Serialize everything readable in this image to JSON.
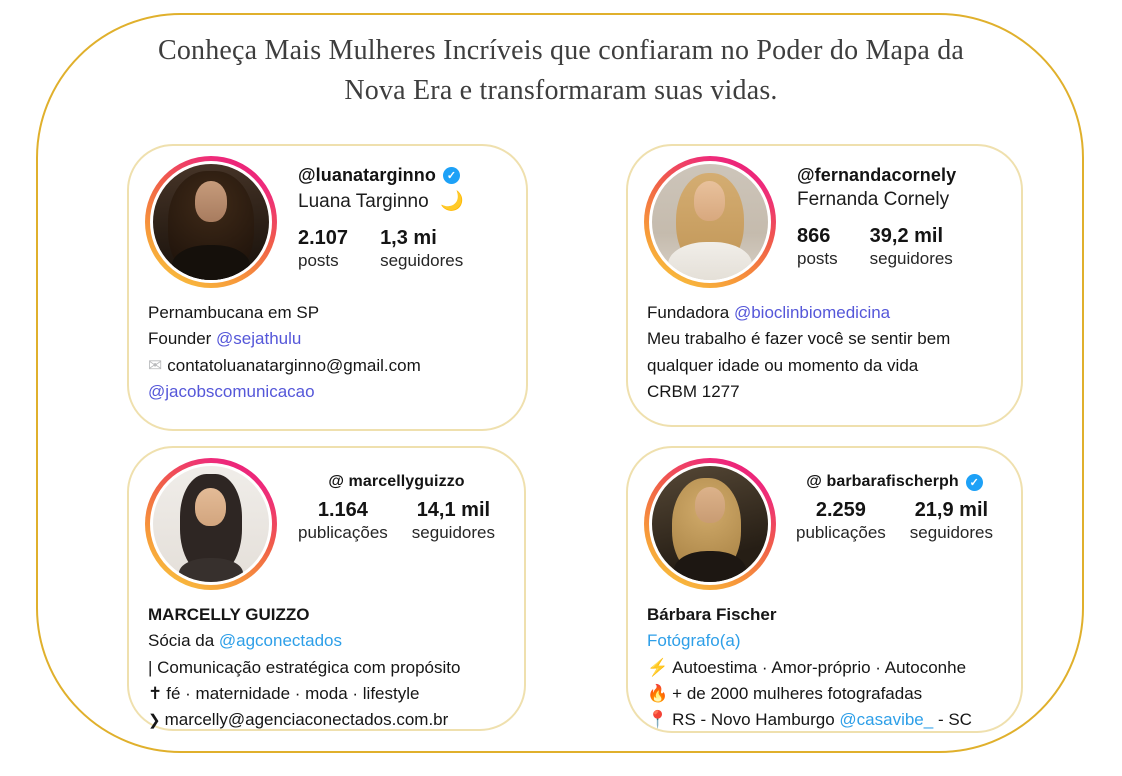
{
  "title": {
    "line1": "Conheça Mais Mulheres Incríveis que confiaram no Poder do Mapa da",
    "line2": "Nova Era e transformaram suas vidas."
  },
  "colors": {
    "frame_gold": "#e0b02c",
    "card_border": "#efe0ae",
    "mention_purple": "#5557d9",
    "mention_blue": "#2e9fe8",
    "verified_blue": "#1da1f7",
    "story_ring_gradient": [
      "#f8cf3e",
      "#f79a3a",
      "#ee2a7b",
      "#e4156e"
    ]
  },
  "icons": {
    "verified_check": "✓",
    "moon": "🌙",
    "envelope": "✉",
    "lightning": "⚡",
    "fire": "🔥",
    "pin": "📍",
    "cross": "✝",
    "chevron": "❯"
  },
  "cards": [
    {
      "handle": "@luanatarginno",
      "verified": true,
      "display_name": "Luana Targinno",
      "stats": [
        {
          "value": "2.107",
          "label": "posts"
        },
        {
          "value": "1,3 mi",
          "label": "seguidores"
        }
      ],
      "bio": {
        "line1": "Pernambucana em SP",
        "line2_prefix": "Founder ",
        "line2_mention": "@sejathulu",
        "line3_text": "contatoluanatarginno@gmail.com",
        "line4_mention": "@jacobscomunicacao"
      }
    },
    {
      "handle": "@fernandacornely",
      "verified": false,
      "display_name": "Fernanda Cornely",
      "stats": [
        {
          "value": "866",
          "label": "posts"
        },
        {
          "value": "39,2 mil",
          "label": "seguidores"
        }
      ],
      "bio": {
        "line1_prefix": "Fundadora ",
        "line1_mention": "@bioclinbiomedicina",
        "line2": "Meu trabalho é fazer você se sentir bem",
        "line3": "qualquer idade ou momento da vida",
        "line4": "CRBM 1277"
      }
    },
    {
      "handle": "@ marcellyguizzo",
      "verified": false,
      "stats": [
        {
          "value": "1.164",
          "label": "publicações"
        },
        {
          "value": "14,1 mil",
          "label": "seguidores"
        }
      ],
      "bio": {
        "name": "MARCELLY GUIZZO",
        "line1_prefix": "Sócia da ",
        "line1_mention": "@agconectados",
        "line2": "| Comunicação estratégica com propósito",
        "line3_text": "fé · maternidade · moda · lifestyle",
        "line4_text": "marcelly@agenciaconectados.com.br"
      }
    },
    {
      "handle": "@ barbarafischerph",
      "verified": true,
      "stats": [
        {
          "value": "2.259",
          "label": "publicações"
        },
        {
          "value": "21,9 mil",
          "label": "seguidores"
        }
      ],
      "bio": {
        "name": "Bárbara Fischer",
        "category": "Fotógrafo(a)",
        "line2_text": "Autoestima · Amor-próprio · Autoconhe",
        "line3_text": "+ de 2000 mulheres fotografadas",
        "line4_text": "RS - Novo Hamburgo ",
        "line4_mention": "@casavibe_",
        "line4_suffix": " - SC"
      }
    }
  ]
}
